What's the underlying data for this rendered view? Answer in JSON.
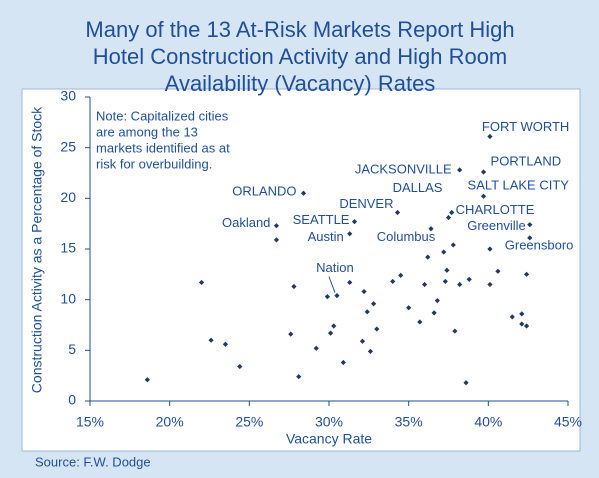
{
  "chart_data": {
    "type": "scatter",
    "title": [
      "Many of the 13 At-Risk Markets Report High",
      "Hotel Construction Activity and High Room",
      "Availability (Vacancy) Rates"
    ],
    "xlabel": "Vacancy Rate",
    "ylabel": "Construction Activity as a Percentage of Stock",
    "note": [
      "Note: Capitalized cities",
      "are among the 13",
      "markets identified as at",
      "risk for overbuilding."
    ],
    "source": "Source: F.W. Dodge",
    "color": "#1c3a6e",
    "xlim": [
      15,
      45
    ],
    "ylim": [
      0,
      30
    ],
    "xticks": [
      {
        "value": 15,
        "label": "15%"
      },
      {
        "value": 20,
        "label": "20%"
      },
      {
        "value": 25,
        "label": "25%"
      },
      {
        "value": 30,
        "label": "30%"
      },
      {
        "value": 35,
        "label": "35%"
      },
      {
        "value": 40,
        "label": "40%"
      },
      {
        "value": 45,
        "label": "45%"
      }
    ],
    "yticks": [
      0,
      5,
      10,
      15,
      20,
      25,
      30
    ],
    "points": [
      {
        "x": 18.6,
        "y": 2.1
      },
      {
        "x": 22.0,
        "y": 11.7
      },
      {
        "x": 22.6,
        "y": 6.0
      },
      {
        "x": 23.5,
        "y": 5.6
      },
      {
        "x": 24.4,
        "y": 3.4
      },
      {
        "x": 26.7,
        "y": 17.3,
        "label": "Oakland"
      },
      {
        "x": 26.7,
        "y": 15.9
      },
      {
        "x": 28.4,
        "y": 20.5,
        "label": "ORLANDO"
      },
      {
        "x": 27.8,
        "y": 11.3
      },
      {
        "x": 27.6,
        "y": 6.6
      },
      {
        "x": 28.1,
        "y": 2.4
      },
      {
        "x": 29.2,
        "y": 5.2
      },
      {
        "x": 29.9,
        "y": 10.3
      },
      {
        "x": 30.5,
        "y": 10.4,
        "label": "Nation"
      },
      {
        "x": 30.3,
        "y": 7.4
      },
      {
        "x": 30.1,
        "y": 6.7
      },
      {
        "x": 30.9,
        "y": 3.8
      },
      {
        "x": 31.3,
        "y": 11.7
      },
      {
        "x": 31.6,
        "y": 17.7,
        "label": "SEATTLE"
      },
      {
        "x": 31.3,
        "y": 16.5,
        "label": "Austin"
      },
      {
        "x": 32.1,
        "y": 5.9
      },
      {
        "x": 32.2,
        "y": 10.8
      },
      {
        "x": 32.4,
        "y": 8.8
      },
      {
        "x": 32.6,
        "y": 4.9
      },
      {
        "x": 32.8,
        "y": 9.6
      },
      {
        "x": 33.0,
        "y": 7.1
      },
      {
        "x": 34.0,
        "y": 11.8
      },
      {
        "x": 34.5,
        "y": 12.4
      },
      {
        "x": 34.3,
        "y": 18.6,
        "label": "DENVER"
      },
      {
        "x": 35.0,
        "y": 9.2
      },
      {
        "x": 35.7,
        "y": 7.8
      },
      {
        "x": 36.0,
        "y": 11.5
      },
      {
        "x": 36.2,
        "y": 14.2
      },
      {
        "x": 36.4,
        "y": 17.0,
        "label": "Columbus"
      },
      {
        "x": 36.6,
        "y": 8.7
      },
      {
        "x": 36.8,
        "y": 9.9
      },
      {
        "x": 37.2,
        "y": 14.7
      },
      {
        "x": 37.3,
        "y": 11.8
      },
      {
        "x": 37.4,
        "y": 12.9
      },
      {
        "x": 37.5,
        "y": 18.1,
        "label": "DALLAS"
      },
      {
        "x": 37.7,
        "y": 18.6,
        "label": "CHARLOTTE"
      },
      {
        "x": 37.8,
        "y": 15.4
      },
      {
        "x": 37.9,
        "y": 6.9
      },
      {
        "x": 38.2,
        "y": 11.5
      },
      {
        "x": 38.2,
        "y": 22.8,
        "label": "JACKSONVILLE"
      },
      {
        "x": 38.6,
        "y": 1.8
      },
      {
        "x": 38.8,
        "y": 12.0
      },
      {
        "x": 40.1,
        "y": 26.1,
        "label": "FORT WORTH"
      },
      {
        "x": 39.7,
        "y": 22.6,
        "label": "PORTLAND"
      },
      {
        "x": 39.7,
        "y": 20.2,
        "label": "SALT LAKE CITY"
      },
      {
        "x": 42.6,
        "y": 17.4,
        "label": "Greenville"
      },
      {
        "x": 40.1,
        "y": 15.0
      },
      {
        "x": 40.1,
        "y": 11.5
      },
      {
        "x": 40.6,
        "y": 12.8
      },
      {
        "x": 41.5,
        "y": 8.3
      },
      {
        "x": 42.1,
        "y": 8.6
      },
      {
        "x": 42.1,
        "y": 7.6
      },
      {
        "x": 42.4,
        "y": 7.4
      },
      {
        "x": 42.4,
        "y": 12.5
      },
      {
        "x": 42.6,
        "y": 16.1,
        "label": "Greensboro"
      }
    ]
  }
}
